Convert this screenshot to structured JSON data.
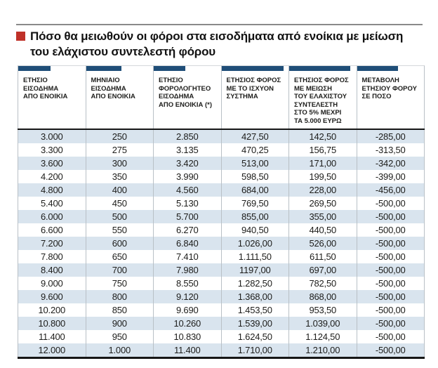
{
  "header": {
    "title_lines": [
      "Πόσο θα μειωθούν οι φόροι στα εισοδήματα από ενοίκια με μείωση",
      "του ελάχιστου συντελεστή φόρου"
    ]
  },
  "colors": {
    "bullet_red": "#bf3129",
    "accent_bar_blue": "#1f4e78",
    "row_stripe": "#d9e4ee",
    "border_light": "#b9c0c6",
    "border_dark": "#161616",
    "rule_gray": "#8a8a8a",
    "text": "#1d1d1b"
  },
  "chart_data": {
    "type": "table",
    "title": "Πόσο θα μειωθούν οι φόροι στα εισοδήματα από ενοίκια με μείωση του ελάχιστου συντελεστή φόρου",
    "columns": [
      {
        "label": "ΕΤΗΣΙΟ ΕΙΣΟΔΗΜΑ ΑΠΟ ΕΝΟΙΚΙΑ",
        "lines": [
          "ΕΤΗΣΙΟ",
          "ΕΙΣΟΔΗΜΑ",
          "ΑΠΟ ΕΝΟΙΚΙΑ"
        ]
      },
      {
        "label": "ΜΗΝΙΑΙΟ ΕΙΣΟΔΗΜΑ ΑΠΟ ΕΝΟΙΚΙΑ",
        "lines": [
          "ΜΗΝΙΑΙΟ",
          "ΕΙΣΟΔΗΜΑ",
          "ΑΠΟ ΕΝΟΙΚΙΑ"
        ]
      },
      {
        "label": "ΕΤΗΣΙΟ ΦΟΡΟΛΟΓΗΤΕΟ ΕΙΣΟΔΗΜΑ ΑΠΟ ΕΝΟΙΚΙΑ (*)",
        "lines": [
          "ΕΤΗΣΙΟ",
          "ΦΟΡΟΛΟΓΗΤΕΟ",
          "ΕΙΣΟΔΗΜΑ",
          "ΑΠΟ ΕΝΟΙΚΙΑ (*)"
        ]
      },
      {
        "label": "ΕΤΗΣΙΟΣ ΦΟΡΟΣ ΜΕ ΤΟ ΙΣΧΥΟΝ ΣΥΣΤΗΜΑ",
        "lines": [
          "ΕΤΗΣΙΟΣ ΦΟΡΟΣ",
          "ΜΕ ΤΟ ΙΣΧΥΟΝ",
          "ΣΥΣΤΗΜΑ"
        ]
      },
      {
        "label": "ΕΤΗΣΙΟΣ ΦΟΡΟΣ ΜΕ ΜΕΙΩΣΗ ΤΟΥ ΕΛΑΧΙΣΤΟΥ ΣΥΝΤΕΛΕΣΤΗ ΣΤΟ 5% ΜΕΧΡΙ ΤΑ 5.000 ΕΥΡΩ",
        "lines": [
          "ΕΤΗΣΙΟΣ ΦΟΡΟΣ",
          "ΜΕ ΜΕΙΩΣΗ",
          "ΤΟΥ ΕΛΑΧΙΣΤΟΥ",
          "ΣΥΝΤΕΛΕΣΤΗ",
          "ΣΤΟ 5% ΜΕΧΡΙ",
          "ΤΑ 5.000 ΕΥΡΩ"
        ]
      },
      {
        "label": "ΜΕΤΑΒΟΛΗ ΕΤΗΣΙΟΥ ΦΟΡΟΥ ΣΕ ΠΟΣΟ",
        "lines": [
          "ΜΕΤΑΒΟΛΗ",
          "ΕΤΗΣΙΟΥ ΦΟΡΟΥ",
          "ΣΕ ΠΟΣΟ"
        ]
      }
    ],
    "rows": [
      [
        "3.000",
        "250",
        "2.850",
        "427,50",
        "142,50",
        "-285,00"
      ],
      [
        "3.300",
        "275",
        "3.135",
        "470,25",
        "156,75",
        "-313,50"
      ],
      [
        "3.600",
        "300",
        "3.420",
        "513,00",
        "171,00",
        "-342,00"
      ],
      [
        "4.200",
        "350",
        "3.990",
        "598,50",
        "199,50",
        "-399,00"
      ],
      [
        "4.800",
        "400",
        "4.560",
        "684,00",
        "228,00",
        "-456,00"
      ],
      [
        "5.400",
        "450",
        "5.130",
        "769,50",
        "269,50",
        "-500,00"
      ],
      [
        "6.000",
        "500",
        "5.700",
        "855,00",
        "355,00",
        "-500,00"
      ],
      [
        "6.600",
        "550",
        "6.270",
        "940,50",
        "440,50",
        "-500,00"
      ],
      [
        "7.200",
        "600",
        "6.840",
        "1.026,00",
        "526,00",
        "-500,00"
      ],
      [
        "7.800",
        "650",
        "7.410",
        "1.111,50",
        "611,50",
        "-500,00"
      ],
      [
        "8.400",
        "700",
        "7.980",
        "1197,00",
        "697,00",
        "-500,00"
      ],
      [
        "9.000",
        "750",
        "8.550",
        "1.282,50",
        "782,50",
        "-500,00"
      ],
      [
        "9.600",
        "800",
        "9.120",
        "1.368,00",
        "868,00",
        "-500,00"
      ],
      [
        "10.200",
        "850",
        "9.690",
        "1.453,50",
        "953,50",
        "-500,00"
      ],
      [
        "10.800",
        "900",
        "10.260",
        "1.539,00",
        "1.039,00",
        "-500,00"
      ],
      [
        "11.400",
        "950",
        "10.830",
        "1.624,50",
        "1.124,50",
        "-500,00"
      ],
      [
        "12.000",
        "1.000",
        "11.400",
        "1.710,00",
        "1.210,00",
        "-500,00"
      ]
    ]
  }
}
